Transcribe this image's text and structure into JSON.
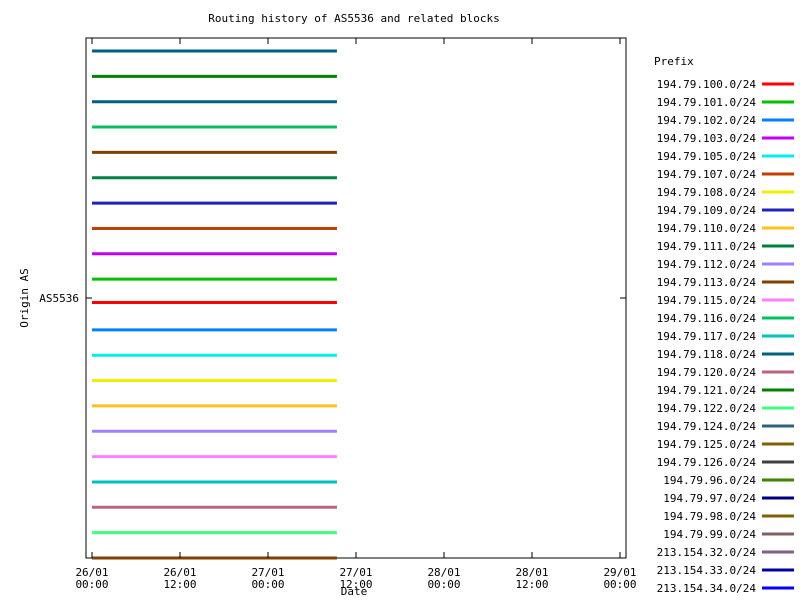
{
  "chart_data": {
    "type": "line",
    "title": "Routing history of AS5536 and related blocks",
    "xlabel": "Date",
    "ylabel": "Origin AS",
    "y_tick": "AS5536",
    "x_ticks": [
      "26/01\n00:00",
      "26/01\n12:00",
      "27/01\n00:00",
      "27/01\n12:00",
      "28/01\n00:00",
      "28/01\n12:00",
      "29/01\n00:00"
    ],
    "x_range_hours": [
      0,
      72
    ],
    "line_end_hours": 33.4,
    "legend_title": "Prefix",
    "legend_position": "right",
    "grid": false,
    "series": [
      {
        "name": "194.79.100.0/24",
        "color": "#ff0000"
      },
      {
        "name": "194.79.101.0/24",
        "color": "#00c000"
      },
      {
        "name": "194.79.102.0/24",
        "color": "#0080ff"
      },
      {
        "name": "194.79.103.0/24",
        "color": "#c000ff"
      },
      {
        "name": "194.79.105.0/24",
        "color": "#00eeee"
      },
      {
        "name": "194.79.107.0/24",
        "color": "#c04000"
      },
      {
        "name": "194.79.108.0/24",
        "color": "#eeee00"
      },
      {
        "name": "194.79.109.0/24",
        "color": "#2020c0"
      },
      {
        "name": "194.79.110.0/24",
        "color": "#ffc020"
      },
      {
        "name": "194.79.111.0/24",
        "color": "#008040"
      },
      {
        "name": "194.79.112.0/24",
        "color": "#a080ff"
      },
      {
        "name": "194.79.113.0/24",
        "color": "#804000"
      },
      {
        "name": "194.79.115.0/24",
        "color": "#ff80ff"
      },
      {
        "name": "194.79.116.0/24",
        "color": "#00c060"
      },
      {
        "name": "194.79.117.0/24",
        "color": "#00c0c0"
      },
      {
        "name": "194.79.118.0/24",
        "color": "#006080"
      },
      {
        "name": "194.79.120.0/24",
        "color": "#c06080"
      },
      {
        "name": "194.79.121.0/24",
        "color": "#008000"
      },
      {
        "name": "194.79.122.0/24",
        "color": "#40ff80"
      },
      {
        "name": "194.79.124.0/24",
        "color": "#306080"
      },
      {
        "name": "194.79.125.0/24",
        "color": "#806000"
      },
      {
        "name": "194.79.126.0/24",
        "color": "#404040"
      },
      {
        "name": "194.79.96.0/24",
        "color": "#408000"
      },
      {
        "name": "194.79.97.0/24",
        "color": "#000080"
      },
      {
        "name": "194.79.98.0/24",
        "color": "#806000"
      },
      {
        "name": "194.79.99.0/24",
        "color": "#806060"
      },
      {
        "name": "213.154.32.0/24",
        "color": "#806080"
      },
      {
        "name": "213.154.33.0/24",
        "color": "#0000a0"
      },
      {
        "name": "213.154.34.0/24",
        "color": "#0000ff"
      }
    ],
    "plot_order": [
      "194.79.118.0/24",
      "194.79.121.0/24",
      "194.79.118.0/24",
      "194.79.116.0/24",
      "194.79.113.0/24",
      "194.79.111.0/24",
      "194.79.109.0/24",
      "194.79.107.0/24",
      "194.79.103.0/24",
      "194.79.101.0/24",
      "194.79.100.0/24",
      "194.79.102.0/24",
      "194.79.105.0/24",
      "194.79.108.0/24",
      "194.79.110.0/24",
      "194.79.112.0/24",
      "194.79.115.0/24",
      "194.79.117.0/24",
      "194.79.120.0/24",
      "194.79.122.0/24",
      "194.79.113.0/24"
    ]
  }
}
